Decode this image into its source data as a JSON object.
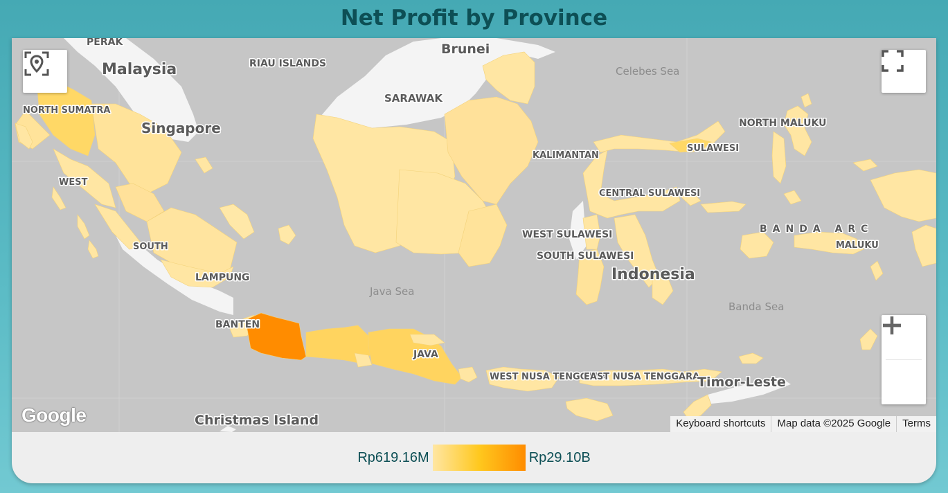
{
  "title": "Net Profit by Province",
  "map": {
    "labels": {
      "perak": "PERAK",
      "malaysia": "Malaysia",
      "riau_islands": "RIAU ISLANDS",
      "brunei": "Brunei",
      "sarawak": "SARAWAK",
      "singapore": "Singapore",
      "north_sumatra": "NORTH SUMATRA",
      "west_sumatra": "WEST",
      "south_sumatra": "SOUTH",
      "lampung": "LAMPUNG",
      "celebes_sea": "Celebes Sea",
      "north_maluku": "NORTH MALUKU",
      "sulawesi": "SULAWESI",
      "central_sulawesi": "CENTRAL SULAWESI",
      "west_sulawesi": "WEST SULAWESI",
      "south_sulawesi": "SOUTH SULAWESI",
      "indonesia": "Indonesia",
      "banda_arc": "BANDA ARC",
      "maluku": "MALUKU",
      "java_sea": "Java Sea",
      "banda_sea": "Banda Sea",
      "banten": "BANTEN",
      "java": "JAVA",
      "west_nusa_tenggara": "WEST NUSA TENGGARA",
      "east_nusa_tenggara": "EAST NUSA TENGGARA",
      "timor_leste": "Timor-Leste",
      "christmas_island": "Christmas Island",
      "kalimantan": "KALIMANTAN"
    },
    "controls": {
      "locate_icon": "map-locate-icon",
      "fullscreen_icon": "fullscreen-icon",
      "zoom_in_icon": "plus-icon",
      "zoom_out_icon": "minus-icon"
    },
    "logo": "Google",
    "attribution": {
      "keyboard": "Keyboard shortcuts",
      "data": "Map data ©2025 Google",
      "terms": "Terms"
    }
  },
  "legend": {
    "min_label": "Rp619.16M",
    "max_label": "Rp29.10B",
    "colors": [
      "#ffe6a3",
      "#ffc81e",
      "#ff8c00"
    ]
  },
  "colors": {
    "background": "#45a9b4",
    "title": "#0d4f55",
    "highest": "#ff8c00",
    "land_neighbors": "#f2f2f2",
    "sea": "#c6c6c6"
  }
}
